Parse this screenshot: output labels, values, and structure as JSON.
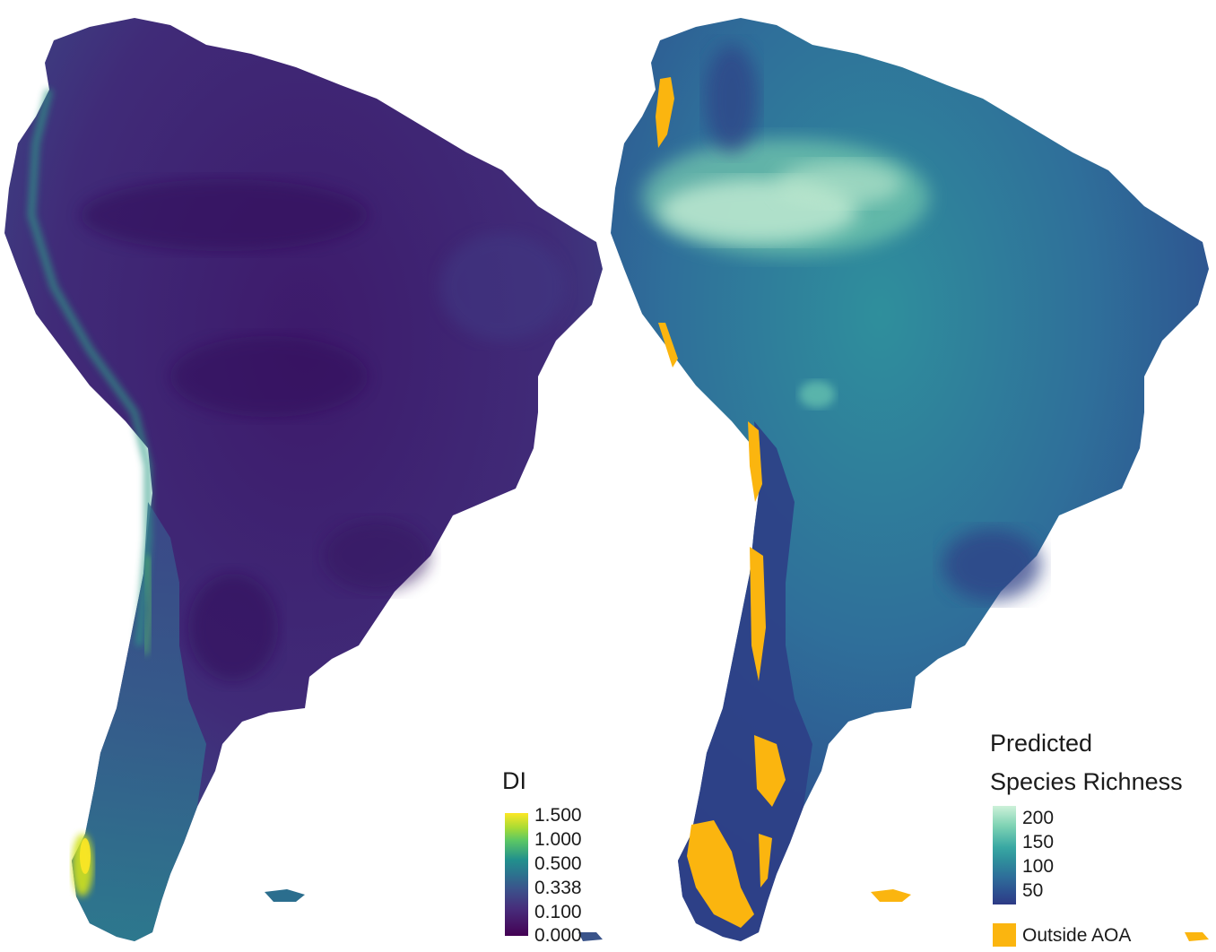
{
  "colors": {
    "viridis_low": "#440154",
    "viridis_mid_low": "#3b528b",
    "viridis_mid": "#21908d",
    "viridis_mid_high": "#5dc863",
    "viridis_high": "#fde725",
    "mako_low": "#2d3a85",
    "mako_mid": "#2f8f9c",
    "mako_high": "#cdf1d9",
    "outside_aoa": "#fbb50f",
    "background": "#ffffff"
  },
  "di_panel": {
    "legend_title": "DI",
    "ticks": [
      "1.500",
      "1.000",
      "0.500",
      "0.338",
      "0.100",
      "0.000"
    ]
  },
  "richness_panel": {
    "legend_title_line1": "Predicted",
    "legend_title_line2": "Species Richness",
    "ticks": [
      "200",
      "150",
      "100",
      "50"
    ],
    "aoa_label": "Outside AOA"
  }
}
